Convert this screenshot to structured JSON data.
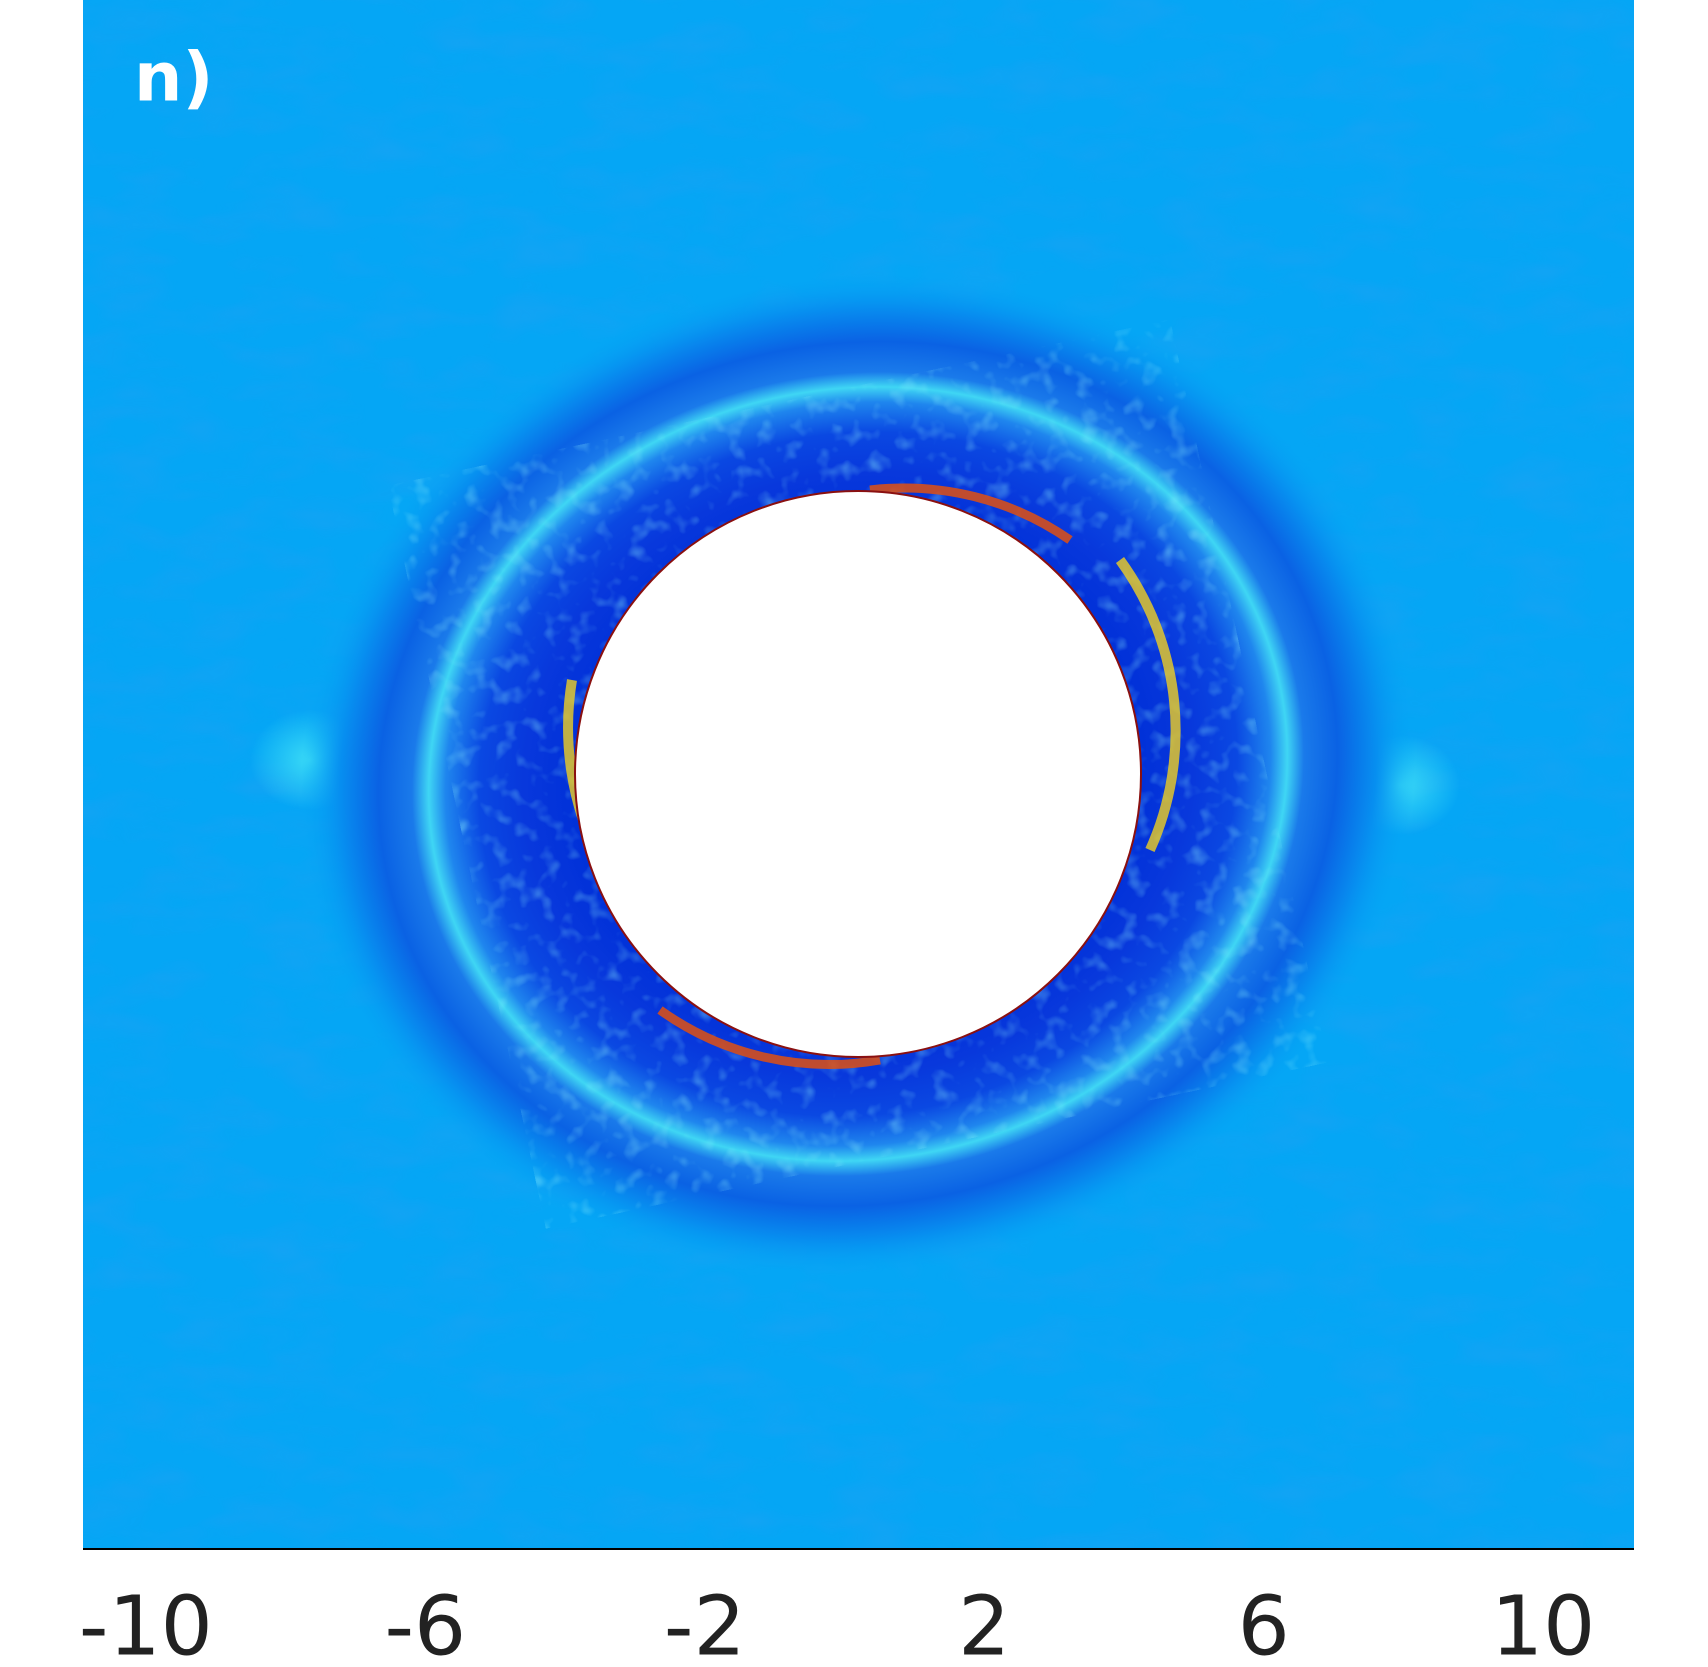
{
  "chart_data": {
    "type": "contour",
    "title": "n)",
    "xlim": [
      -10.9,
      11.3
    ],
    "xticks": [
      -10,
      -6,
      -2,
      2,
      6,
      10
    ]
  }
}
